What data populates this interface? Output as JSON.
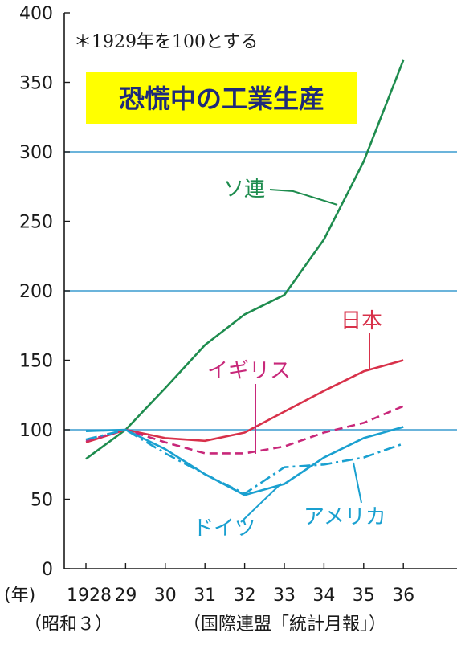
{
  "chart_data": {
    "type": "line",
    "title": "恐慌中の工業生産",
    "note": "＊1929年を100とする",
    "x_unit": "(年)",
    "x": [
      "1928",
      "29",
      "30",
      "31",
      "32",
      "33",
      "34",
      "35",
      "36"
    ],
    "era_label": "（昭和３）",
    "source": "（国際連盟「統計月報」）",
    "ylim": [
      0,
      400
    ],
    "yticks": [
      "0",
      "50",
      "100",
      "150",
      "200",
      "250",
      "300",
      "350",
      "400"
    ],
    "gridlines": [
      100,
      200,
      300
    ],
    "series": [
      {
        "name": "ソ連",
        "values": [
          79,
          100,
          130,
          161,
          183,
          197,
          237,
          293,
          366
        ],
        "color": "#1e8c4e",
        "style": "solid"
      },
      {
        "name": "日本",
        "values": [
          91,
          100,
          94,
          92,
          98,
          113,
          128,
          142,
          150
        ],
        "color": "#d8314a",
        "style": "solid"
      },
      {
        "name": "イギリス",
        "values": [
          92,
          100,
          91,
          83,
          83,
          88,
          98,
          105,
          117
        ],
        "color": "#c8287a",
        "style": "dashed"
      },
      {
        "name": "ドイツ",
        "values": [
          99,
          100,
          86,
          68,
          53,
          61,
          80,
          94,
          102
        ],
        "color": "#1aa0d0",
        "style": "solid"
      },
      {
        "name": "アメリカ",
        "values": [
          93,
          100,
          83,
          68,
          54,
          73,
          75,
          80,
          90
        ],
        "color": "#1aa0d0",
        "style": "dashdot"
      }
    ]
  }
}
